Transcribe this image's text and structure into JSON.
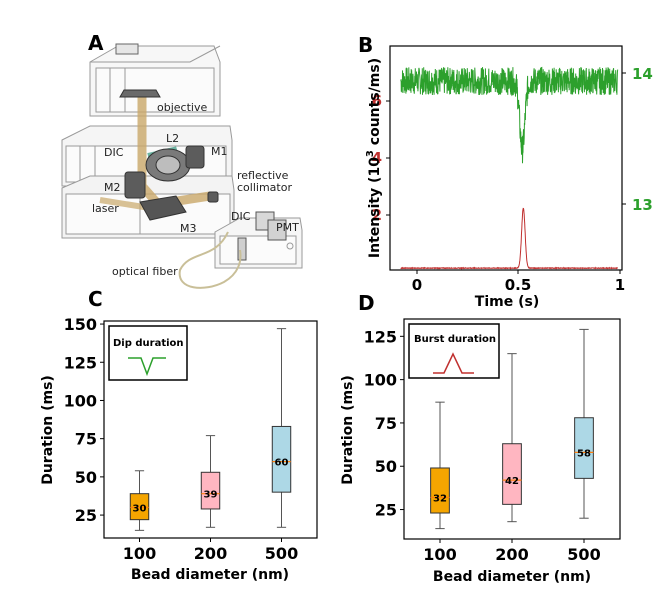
{
  "panels": {
    "A": {
      "letter": "A",
      "labels": [
        "objective",
        "L2",
        "DIC",
        "M1",
        "reflective",
        "collimator",
        "M2",
        "laser",
        "M3",
        "DIC",
        "PMT",
        "optical fiber"
      ]
    },
    "B": {
      "letter": "B",
      "ylabel_left": "Intensity (10",
      "ylabel_sup": "3",
      "ylabel_right": " counts/ms)",
      "left_ticks": [
        "2",
        "4",
        "6"
      ],
      "right_ticks": [
        "13",
        "14"
      ],
      "x_ticks": [
        "0",
        "0.5",
        "1"
      ],
      "xlabel": "Time (s)"
    },
    "C": {
      "letter": "C",
      "legend_title": "Dip duration",
      "y_ticks": [
        "25",
        "50",
        "75",
        "100",
        "125",
        "150"
      ],
      "x_ticks": [
        "100",
        "200",
        "500"
      ],
      "xlabel": "Bead diameter (nm)",
      "ylabel": "Duration (ms)"
    },
    "D": {
      "letter": "D",
      "legend_title": "Burst duration",
      "y_ticks": [
        "25",
        "50",
        "75",
        "100",
        "125"
      ],
      "x_ticks": [
        "100",
        "200",
        "500"
      ],
      "xlabel": "Bead diameter (nm)",
      "ylabel": "Duration (ms)"
    }
  },
  "colors": {
    "green": "#2ca02c",
    "red": "#c0302f",
    "orange": "#f5a500",
    "pink": "#ffb6c1",
    "lightblue": "#add8e6",
    "median": "#ff7f0e"
  },
  "chart_data": [
    {
      "type": "line",
      "panel": "B",
      "xlabel": "Time (s)",
      "ylabel": "Intensity (10^3 counts/ms)",
      "xlim": [
        -0.05,
        1.02
      ],
      "left_axis": {
        "ticks": [
          2,
          4,
          6
        ],
        "range": [
          0,
          7.1
        ],
        "color": "#c0302f"
      },
      "right_axis": {
        "ticks": [
          13,
          14
        ],
        "range": [
          12.58,
          14.18
        ],
        "color": "#2ca02c"
      },
      "series": [
        {
          "axis": "right",
          "color": "#2ca02c",
          "baseline": 13.93,
          "noise": 0.1,
          "dip": {
            "x": 0.56,
            "min": 13.44,
            "width": 0.012
          }
        },
        {
          "axis": "left",
          "color": "#c0302f",
          "baseline": 0.05,
          "noise": 0.02,
          "peak": {
            "x": 0.565,
            "max": 1.95,
            "width": 0.008
          }
        }
      ],
      "grid": false
    },
    {
      "type": "box",
      "panel": "C",
      "title": "Dip duration",
      "xlabel": "Bead diameter (nm)",
      "ylabel": "Duration (ms)",
      "ylim": [
        10,
        152
      ],
      "categories": [
        "100",
        "200",
        "500"
      ],
      "boxes": [
        {
          "whisker_low": 15,
          "q1": 22,
          "median": 30,
          "q3": 39,
          "whisker_high": 54,
          "label": "30",
          "color": "#f5a500"
        },
        {
          "whisker_low": 17,
          "q1": 29,
          "median": 39,
          "q3": 53,
          "whisker_high": 77,
          "label": "39",
          "color": "#ffb6c1"
        },
        {
          "whisker_low": 17,
          "q1": 40,
          "median": 60,
          "q3": 83,
          "whisker_high": 147,
          "label": "60",
          "color": "#add8e6"
        }
      ],
      "grid": false
    },
    {
      "type": "box",
      "panel": "D",
      "title": "Burst duration",
      "xlabel": "Bead diameter (nm)",
      "ylabel": "Duration (ms)",
      "ylim": [
        8,
        135
      ],
      "categories": [
        "100",
        "200",
        "500"
      ],
      "boxes": [
        {
          "whisker_low": 14,
          "q1": 23,
          "median": 32,
          "q3": 49,
          "whisker_high": 87,
          "label": "32",
          "color": "#f5a500"
        },
        {
          "whisker_low": 18,
          "q1": 28,
          "median": 42,
          "q3": 63,
          "whisker_high": 115,
          "label": "42",
          "color": "#ffb6c1"
        },
        {
          "whisker_low": 20,
          "q1": 43,
          "median": 58,
          "q3": 78,
          "whisker_high": 129,
          "label": "58",
          "color": "#add8e6"
        }
      ],
      "grid": false
    }
  ]
}
